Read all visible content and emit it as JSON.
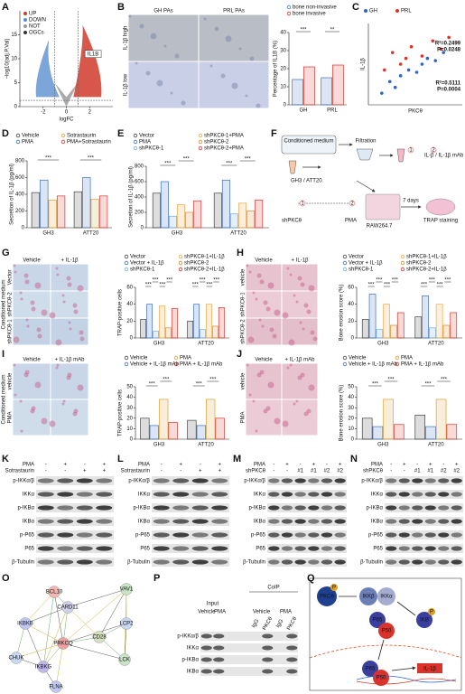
{
  "panels": {
    "A": {
      "letter": "A",
      "legend": [
        "UP",
        "DOWN",
        "NOT",
        "OGCs"
      ],
      "x_label": "logFC",
      "y_label": "−log10(adj.P.Val)",
      "annotation": "IL1B",
      "xlim": [
        -4,
        4
      ],
      "xticks": [
        -2,
        0,
        2
      ],
      "ylim": [
        0,
        20
      ],
      "yticks": [
        0,
        5,
        10,
        15
      ]
    },
    "B": {
      "letter": "B",
      "image_titles": [
        "GH PAs",
        "PRL PAs"
      ],
      "image_rows": [
        "IL-1β high",
        "IL-1β low"
      ],
      "chart": {
        "type": "bar",
        "categories": [
          "GH",
          "PRL"
        ],
        "series": [
          {
            "name": "bone non-invasive",
            "color": "#3b6fc4",
            "values": [
              14,
              15
            ]
          },
          {
            "name": "bone invasive",
            "color": "#d9342b",
            "values": [
              21,
              22
            ]
          }
        ],
        "ylim": [
          0,
          40
        ],
        "yticks": [
          0,
          10,
          20,
          30,
          40
        ],
        "y_label": "Percentage of IL1B (%)",
        "significance": [
          "***",
          "**"
        ]
      }
    },
    "C": {
      "letter": "C",
      "chart": {
        "type": "scatter",
        "x_label": "PKCθ",
        "y_label": "IL-1β",
        "xlim": [
          0,
          35
        ],
        "ylim": [
          0,
          70
        ],
        "series": [
          {
            "name": "GH",
            "color": "#2f64c8",
            "x": [
              5,
              8,
              10,
              12,
              15,
              18,
              20,
              22,
              25,
              28
            ],
            "values": [
              10,
              20,
              15,
              25,
              30,
              28,
              35,
              40,
              38,
              45
            ]
          },
          {
            "name": "PRL",
            "color": "#d9342b",
            "x": [
              6,
              9,
              12,
              14,
              16,
              20,
              24,
              27,
              30
            ],
            "values": [
              30,
              45,
              35,
              40,
              50,
              42,
              55,
              48,
              58
            ]
          }
        ],
        "annotations": [
          "R²=0.2499",
          "P=0.0248",
          "R²=0.5111",
          "P=0.0004"
        ]
      }
    },
    "D": {
      "letter": "D",
      "chart": {
        "type": "bar",
        "categories": [
          "GH3",
          "ATT20"
        ],
        "series": [
          {
            "name": "Vehicle",
            "color": "#444444",
            "values": [
              420,
              430
            ]
          },
          {
            "name": "PMA",
            "color": "#3b6fc4",
            "values": [
              570,
              600
            ]
          },
          {
            "name": "Sotrastaurin",
            "color": "#e0a030",
            "values": [
              330,
              340
            ]
          },
          {
            "name": "PMA+Sotrastaurin",
            "color": "#d9342b",
            "values": [
              380,
              380
            ]
          }
        ],
        "ylim": [
          0,
          800
        ],
        "yticks": [
          0,
          200,
          400,
          600,
          800
        ],
        "y_label": "Secretion of IL-1β (pg/ml)",
        "significance": [
          "***",
          "***"
        ]
      }
    },
    "E": {
      "letter": "E",
      "chart": {
        "type": "bar",
        "categories": [
          "GH3",
          "ATT20"
        ],
        "series": [
          {
            "name": "Vector",
            "color": "#444444",
            "values": [
              450,
              450
            ]
          },
          {
            "name": "PMA",
            "color": "#3b6fc4",
            "values": [
              600,
              620
            ]
          },
          {
            "name": "shPKCθ-1",
            "color": "#6aaee0",
            "values": [
              150,
              180
            ]
          },
          {
            "name": "shPKCθ-1+PMA",
            "color": "#f0a848",
            "values": [
              300,
              320
            ]
          },
          {
            "name": "shPKCθ-2",
            "color": "#e08a20",
            "values": [
              200,
              220
            ]
          },
          {
            "name": "shPKCθ-2+PMA",
            "color": "#d9342b",
            "values": [
              350,
              360
            ]
          }
        ],
        "ylim": [
          0,
          800
        ],
        "yticks": [
          0,
          200,
          400,
          600,
          800
        ],
        "y_label": "Secretion of IL-1β (pg/ml)",
        "significance": [
          "***",
          "***",
          "***",
          "***"
        ]
      }
    },
    "F": {
      "letter": "F",
      "texts": [
        "Conditioned medium",
        "Filtration",
        "GH3 / ATT20",
        "IL-β / IL-1β mAb",
        "shPKCθ",
        "PMA",
        "RAW264.7",
        "7 days",
        "TRAP staining"
      ],
      "steps": [
        "1",
        "2",
        "1",
        "2"
      ]
    },
    "G": {
      "letter": "G",
      "image_titles": [
        "Vehicle",
        "+ IL-1β"
      ],
      "image_rows": [
        "Vector",
        "shPKCθ-2",
        "shPKCθ-1"
      ],
      "side_label": "Conditioned medium",
      "chart": {
        "type": "bar",
        "categories": [
          "GH3",
          "ATT20"
        ],
        "series": [
          {
            "name": "Vector",
            "color": "#444444",
            "values": [
              22,
              20
            ]
          },
          {
            "name": "Vector + IL-1β",
            "color": "#3b6fc4",
            "values": [
              40,
              40
            ]
          },
          {
            "name": "shPKCθ-1",
            "color": "#6aaee0",
            "values": [
              8,
              10
            ]
          },
          {
            "name": "shPKCθ-1+IL-1β",
            "color": "#f0a848",
            "values": [
              38,
              40
            ]
          },
          {
            "name": "shPKCθ-2",
            "color": "#e08a20",
            "values": [
              12,
              14
            ]
          },
          {
            "name": "shPKCθ-2+IL-1β",
            "color": "#d9342b",
            "values": [
              35,
              36
            ]
          }
        ],
        "ylim": [
          0,
          60
        ],
        "yticks": [
          0,
          20,
          40,
          60
        ],
        "y_label": "TRAP-positive cells",
        "significance": [
          "***",
          "***",
          "***",
          "***",
          "***",
          "***",
          "***",
          "***"
        ]
      }
    },
    "H": {
      "letter": "H",
      "image_titles": [
        "Vehicle",
        "+ IL-1β"
      ],
      "image_rows": [
        "vehicle",
        "shPKCθ-1",
        "shPKCθ-2"
      ],
      "chart": {
        "type": "bar",
        "categories": [
          "GH3",
          "ATT20"
        ],
        "series": [
          {
            "name": "Vector",
            "color": "#444444",
            "values": [
              22,
              25
            ]
          },
          {
            "name": "Vector + IL-1β",
            "color": "#3b6fc4",
            "values": [
              52,
              50
            ]
          },
          {
            "name": "shPKCθ-1",
            "color": "#6aaee0",
            "values": [
              10,
              12
            ]
          },
          {
            "name": "shPKCθ-1+IL-1β",
            "color": "#f0a848",
            "values": [
              40,
              40
            ]
          },
          {
            "name": "shPKCθ-2",
            "color": "#e08a20",
            "values": [
              15,
              15
            ]
          },
          {
            "name": "shPKCθ-2+IL-1β",
            "color": "#d9342b",
            "values": [
              30,
              30
            ]
          }
        ],
        "ylim": [
          0,
          60
        ],
        "yticks": [
          0,
          20,
          40,
          60
        ],
        "y_label": "Bone erosion score (%)",
        "significance": [
          "***",
          "***",
          "***",
          "***",
          "***",
          "***",
          "***",
          "***"
        ]
      }
    },
    "I": {
      "letter": "I",
      "image_titles": [
        "Vehicle",
        "+ IL-1β mAb"
      ],
      "image_rows": [
        "vehicle",
        "PMA"
      ],
      "side_label": "Conditioned medium",
      "chart": {
        "type": "bar",
        "categories": [
          "GH3",
          "ATT20"
        ],
        "series": [
          {
            "name": "Vehicle",
            "color": "#444444",
            "values": [
              20,
              18
            ]
          },
          {
            "name": "Vehicle + IL-1β mAb",
            "color": "#3b6fc4",
            "values": [
              13,
              13
            ]
          },
          {
            "name": "PMA",
            "color": "#e0a030",
            "values": [
              38,
              38
            ]
          },
          {
            "name": "PMA + IL-1β mAb",
            "color": "#d9342b",
            "values": [
              16,
              20
            ]
          }
        ],
        "ylim": [
          0,
          50
        ],
        "yticks": [
          0,
          10,
          20,
          30,
          40,
          50
        ],
        "y_label": "TRAP-positive cells",
        "significance": [
          "***",
          "***",
          "***",
          "***"
        ]
      }
    },
    "J": {
      "letter": "J",
      "image_titles": [
        "Vehicle",
        "+ IL-1β mAb"
      ],
      "image_rows": [
        "vehicle",
        "PMA"
      ],
      "chart": {
        "type": "bar",
        "categories": [
          "GH3",
          "ATT20"
        ],
        "series": [
          {
            "name": "Vehicle",
            "color": "#444444",
            "values": [
              20,
              23
            ]
          },
          {
            "name": "Vehicle + IL-1β mAb",
            "color": "#3b6fc4",
            "values": [
              12,
              12
            ]
          },
          {
            "name": "PMA",
            "color": "#e0a030",
            "values": [
              38,
              38
            ]
          },
          {
            "name": "PMA + IL-1β mAb",
            "color": "#d9342b",
            "values": [
              14,
              14
            ]
          }
        ],
        "ylim": [
          0,
          50
        ],
        "yticks": [
          0,
          10,
          20,
          30,
          40,
          50
        ],
        "y_label": "Bone erosion score (%)",
        "significance": [
          "***",
          "***",
          "***",
          "***"
        ]
      }
    },
    "K": {
      "letter": "K",
      "lanes": [
        {
          "label": "PMA",
          "marks": [
            "-",
            "+",
            "-",
            "+"
          ]
        },
        {
          "label": "Sotrastaurin",
          "marks": [
            "-",
            "-",
            "+",
            "+"
          ]
        }
      ],
      "rows": [
        "p-IKKα/β",
        "IKKα",
        "p-IKBα",
        "IKBα",
        "p-P65",
        "P65",
        "β-Tubulin"
      ]
    },
    "L": {
      "letter": "L",
      "lanes": [
        {
          "label": "PMA",
          "marks": [
            "-",
            "+",
            "-",
            "+"
          ]
        },
        {
          "label": "Sotrastaurin",
          "marks": [
            "-",
            "-",
            "+",
            "+"
          ]
        }
      ],
      "rows": [
        "p-IKKα/β",
        "IKKα",
        "p-IKBα",
        "IKBα",
        "p-P65",
        "P65",
        "β-Tubulin"
      ]
    },
    "M": {
      "letter": "M",
      "lanes": [
        {
          "label": "PMA",
          "marks": [
            "-",
            "+",
            "-",
            "+",
            "-",
            "+"
          ]
        },
        {
          "label": "shPKCθ",
          "marks": [
            "-",
            "-",
            "#1",
            "#1",
            "#2",
            "#2"
          ]
        }
      ],
      "rows": [
        "p-IKKα/β",
        "IKKα",
        "p-IKBα",
        "IKBα",
        "p-P65",
        "P65",
        "β-Tubulin"
      ]
    },
    "N": {
      "letter": "N",
      "lanes": [
        {
          "label": "PMA",
          "marks": [
            "-",
            "+",
            "-",
            "+",
            "-",
            "+"
          ]
        },
        {
          "label": "shPKCθ",
          "marks": [
            "-",
            "-",
            "#1",
            "#1",
            "#2",
            "#2"
          ]
        }
      ],
      "rows": [
        "p-IKKα/β",
        "IKKα",
        "p-IKBα",
        "IKBα",
        "p-P65",
        "P65",
        "β-Tubulin"
      ]
    },
    "O": {
      "letter": "O",
      "nodes": [
        "BCL10",
        "VAV1",
        "CARD11",
        "LCP2",
        "IKBKB",
        "CD28",
        "PRKCQ",
        "CHUK",
        "IKBKG",
        "LCK",
        "FLNA"
      ]
    },
    "P": {
      "letter": "P",
      "groups": [
        "Input",
        "CoIP"
      ],
      "conditions": [
        "Vehicle",
        "PMA",
        "Vehicle",
        "PMA"
      ],
      "antibodies": [
        "IgG",
        "PKCθ",
        "IgG",
        "PKCθ"
      ],
      "rows": [
        "p-IKKα/β",
        "IKKα",
        "p-IKBα",
        "IKBα"
      ]
    },
    "Q": {
      "letter": "Q",
      "nodes": [
        "PKCθ",
        "P",
        "IKKβ",
        "IKKα",
        "P65",
        "P50",
        "IKB",
        "P",
        "P65",
        "P50",
        "IL-1β"
      ]
    }
  }
}
